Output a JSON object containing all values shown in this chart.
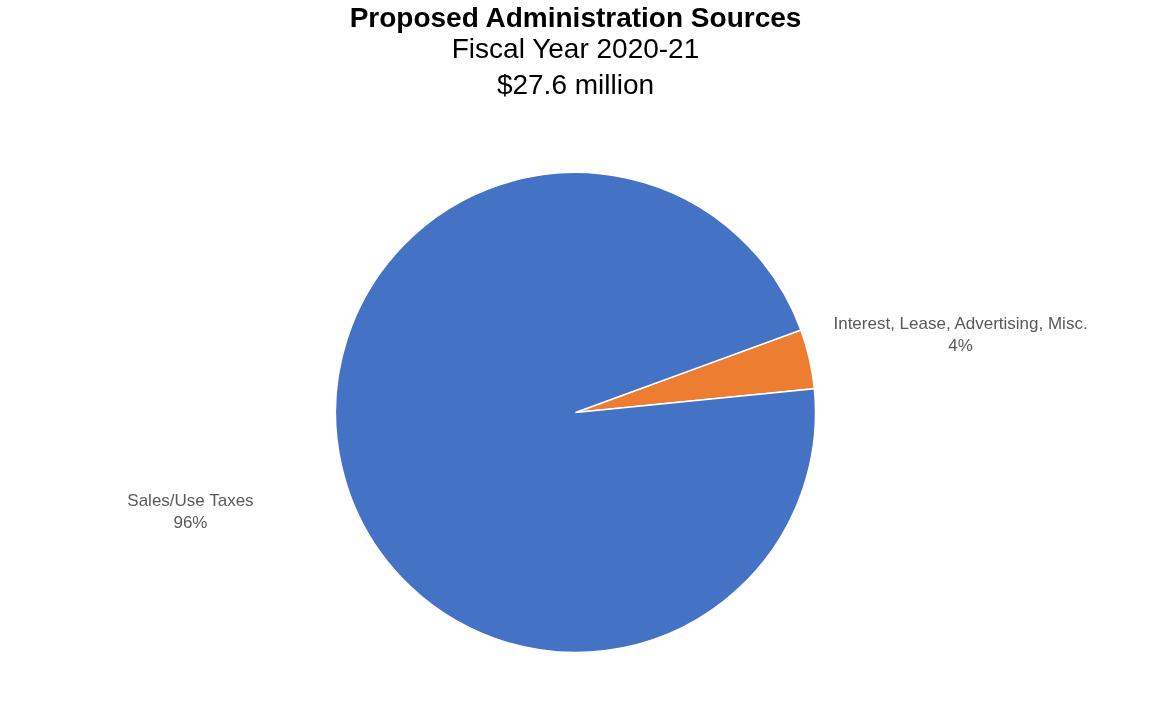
{
  "chart_data": {
    "type": "pie",
    "title": "Proposed Administration Sources",
    "subtitle": "Fiscal Year 2020-21\n$27.6 million",
    "categories": [
      "Interest, Lease, Advertising, Misc.",
      "Sales/Use Taxes"
    ],
    "values": [
      4,
      96
    ],
    "value_labels": [
      "4%",
      "96%"
    ],
    "colors": [
      "#ed7d31",
      "#4472c4"
    ],
    "legend": false
  }
}
